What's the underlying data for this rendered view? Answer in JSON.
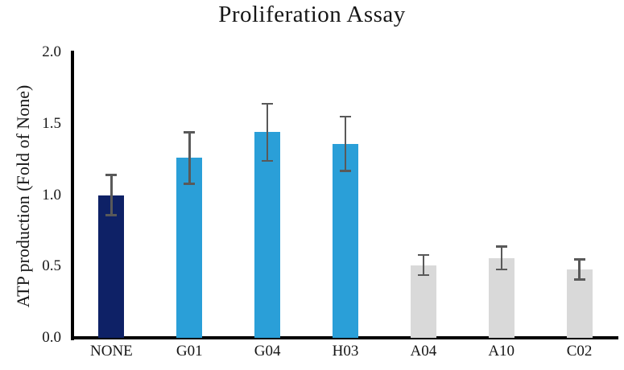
{
  "page": {
    "title": "Proliferation Assay"
  },
  "chart_data": {
    "type": "bar",
    "title": "Proliferation Assay",
    "xlabel": "",
    "ylabel": "ATP production (Fold of None)",
    "ylim": [
      0,
      2.0
    ],
    "yticks": [
      0.0,
      0.5,
      1.0,
      1.5,
      2.0
    ],
    "ytick_labels": [
      "0.0",
      "0.5",
      "1.0",
      "1.5",
      "2.0"
    ],
    "grid": false,
    "legend_position": "none",
    "categories": [
      "NONE",
      "G01",
      "G04",
      "H03",
      "A04",
      "A10",
      "C02"
    ],
    "values": [
      1.0,
      1.26,
      1.44,
      1.36,
      0.51,
      0.56,
      0.48
    ],
    "errors": [
      0.14,
      0.18,
      0.2,
      0.19,
      0.07,
      0.08,
      0.07
    ],
    "bar_colors": [
      "#0e2166",
      "#2a9fd8",
      "#2a9fd8",
      "#2a9fd8",
      "#d9d9d9",
      "#d9d9d9",
      "#d9d9d9"
    ],
    "error_bar_color": "#595959",
    "axis_color": "#000000",
    "background_color": "#ffffff"
  }
}
